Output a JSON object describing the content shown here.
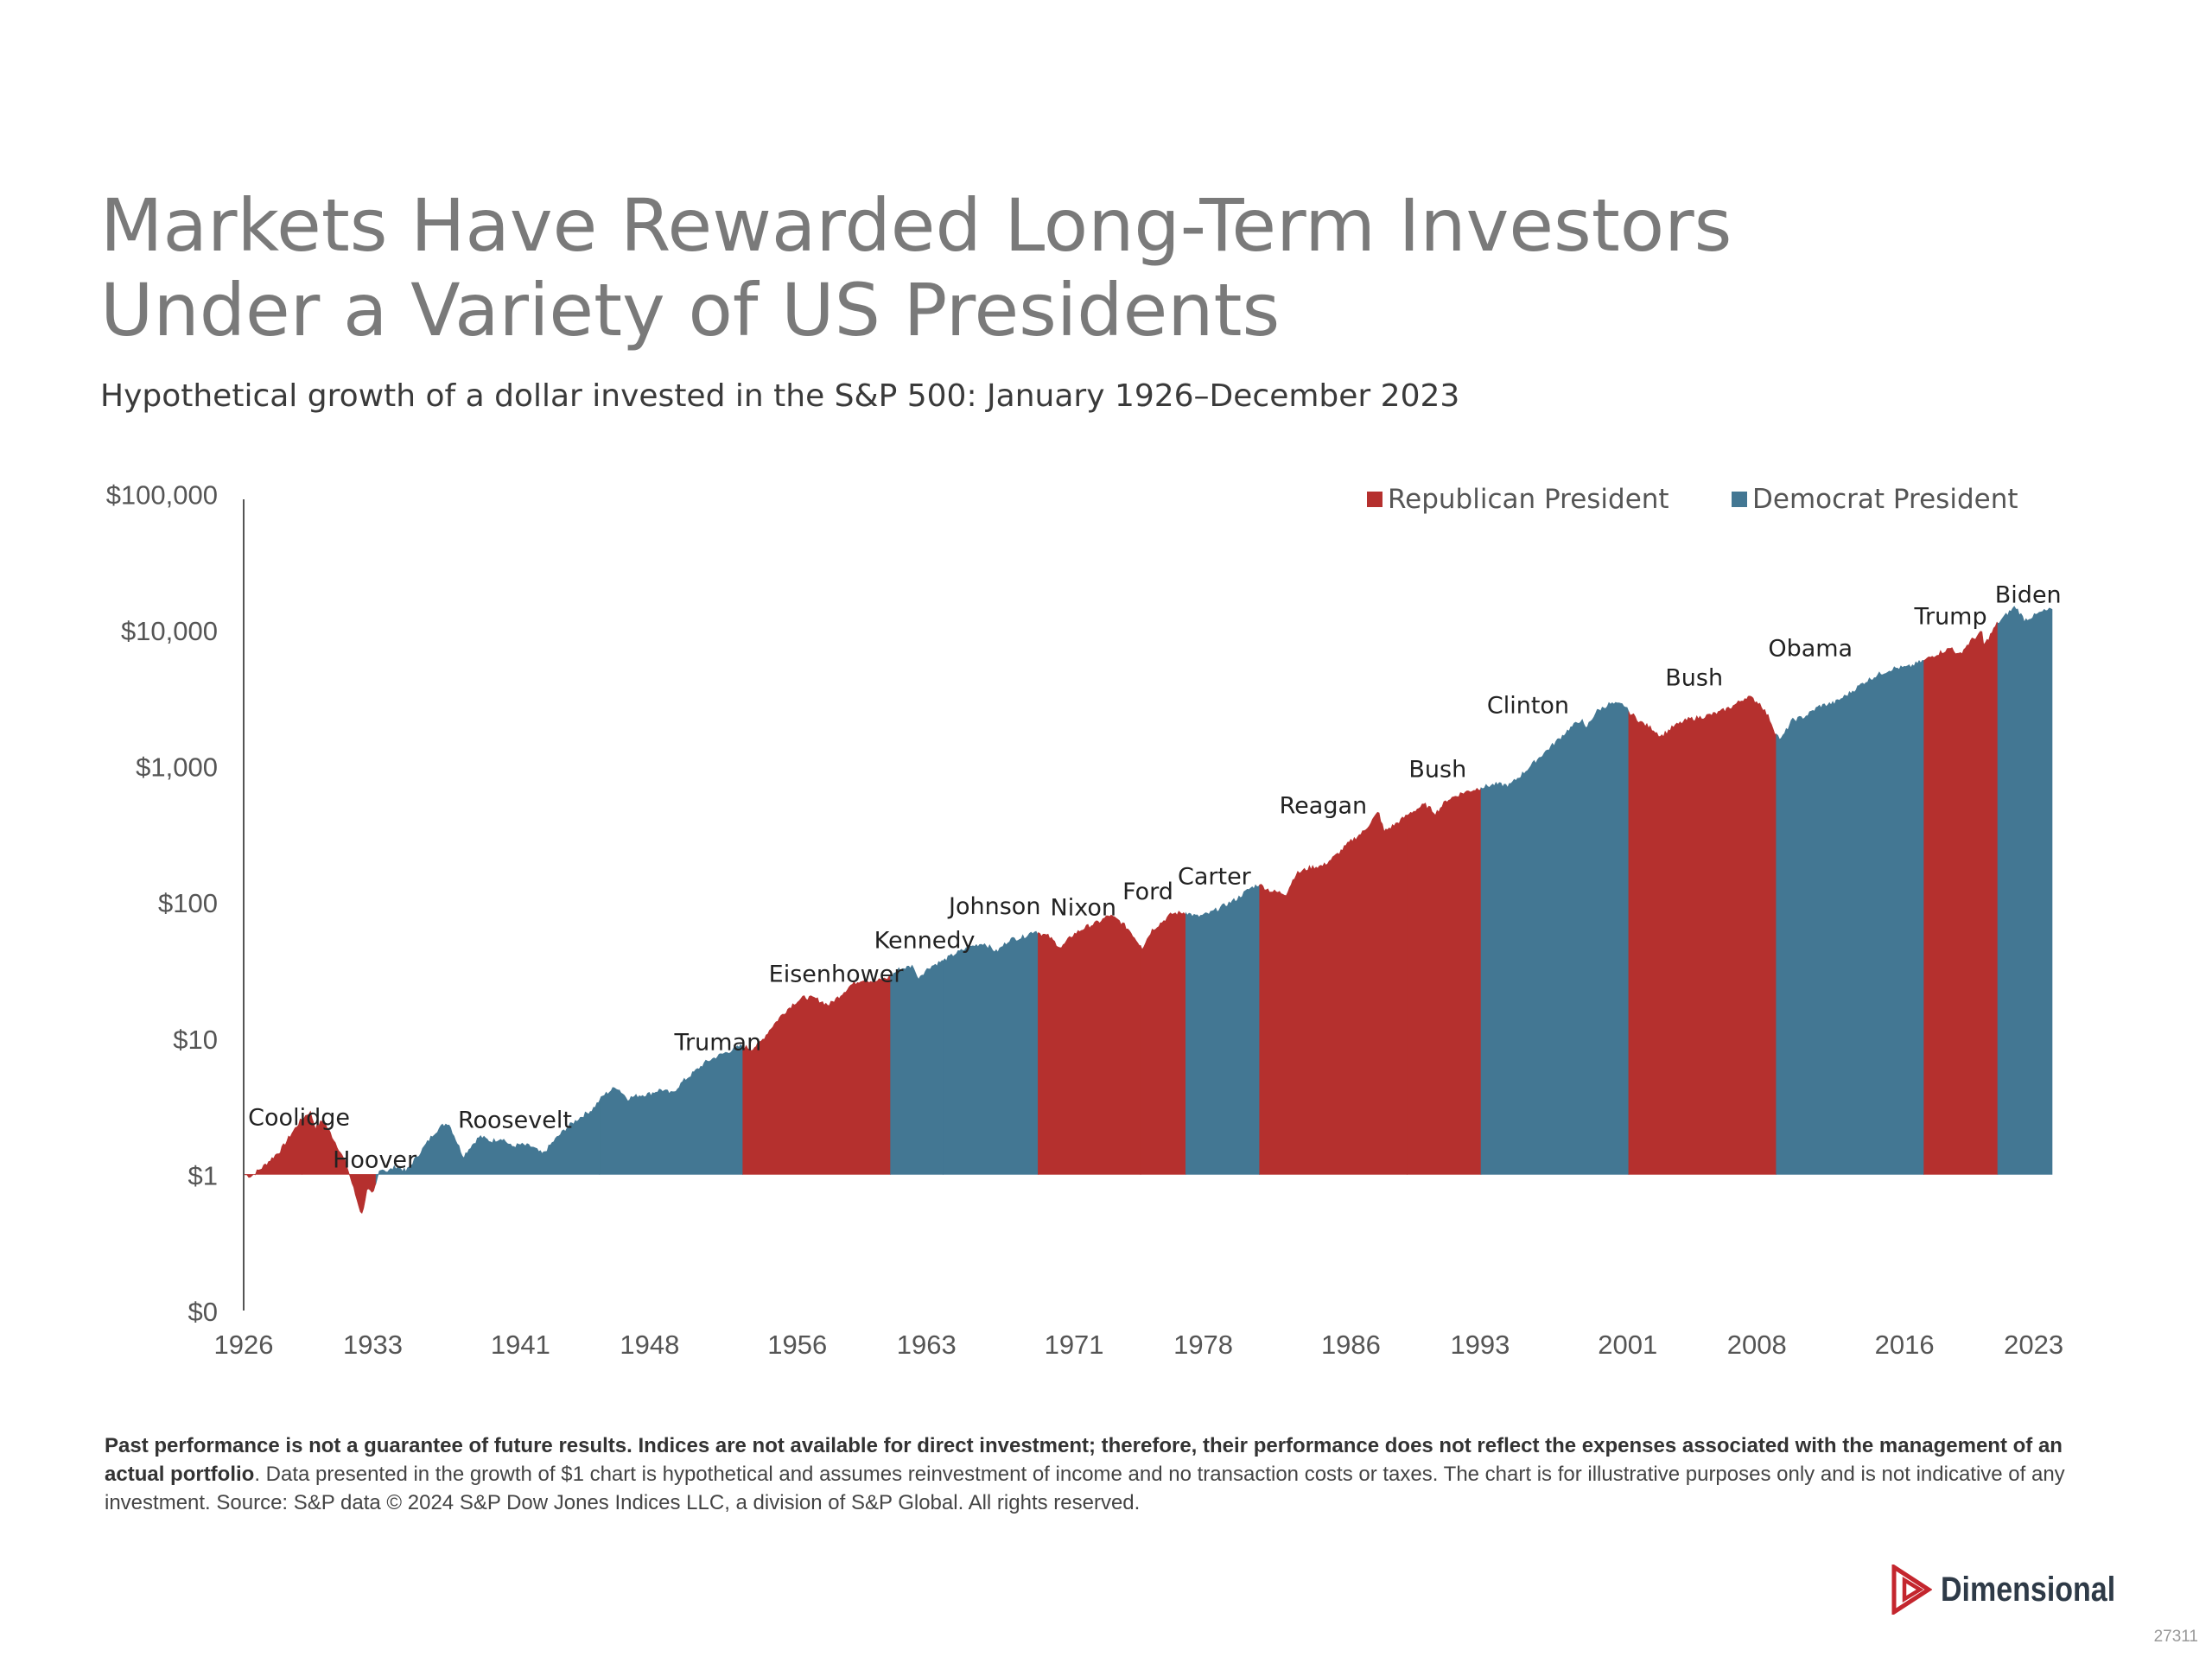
{
  "title_line1": "Markets Have Rewarded Long-Term Investors",
  "title_line2": "Under a Variety of US Presidents",
  "subtitle": "Hypothetical growth of a dollar invested in the S&P 500: January 1926–December 2023",
  "colors": {
    "republican": "#b5302e",
    "democrat": "#437793",
    "axis": "#555555",
    "text": "#333333"
  },
  "chart_data": {
    "type": "area",
    "y_scale": "log",
    "ylim": [
      0.1,
      100000
    ],
    "xlim": [
      1926,
      2024
    ],
    "y_ticks": [
      {
        "value": 100000,
        "label": "$100,000"
      },
      {
        "value": 10000,
        "label": "$10,000"
      },
      {
        "value": 1000,
        "label": "$1,000"
      },
      {
        "value": 100,
        "label": "$100"
      },
      {
        "value": 10,
        "label": "$10"
      },
      {
        "value": 1,
        "label": "$1"
      },
      {
        "value": 0.1,
        "label": "$0"
      }
    ],
    "x_ticks": [
      "1926",
      "1933",
      "1941",
      "1948",
      "1956",
      "1963",
      "1971",
      "1978",
      "1986",
      "1993",
      "2001",
      "2008",
      "2016",
      "2023"
    ],
    "legend": [
      {
        "party": "republican",
        "label": "Republican President"
      },
      {
        "party": "democrat",
        "label": "Democrat President"
      }
    ],
    "legend_position": "top-right",
    "series": [
      {
        "x": 1926.0,
        "y": 1.0
      },
      {
        "x": 1926.4,
        "y": 0.97
      },
      {
        "x": 1927.0,
        "y": 1.12
      },
      {
        "x": 1927.5,
        "y": 1.3
      },
      {
        "x": 1928.0,
        "y": 1.5
      },
      {
        "x": 1928.6,
        "y": 2.0
      },
      {
        "x": 1929.1,
        "y": 2.5
      },
      {
        "x": 1929.6,
        "y": 2.9
      },
      {
        "x": 1929.9,
        "y": 2.2
      },
      {
        "x": 1930.3,
        "y": 2.5
      },
      {
        "x": 1930.8,
        "y": 1.9
      },
      {
        "x": 1931.2,
        "y": 1.5
      },
      {
        "x": 1931.6,
        "y": 1.15
      },
      {
        "x": 1932.0,
        "y": 0.75
      },
      {
        "x": 1932.4,
        "y": 0.5
      },
      {
        "x": 1932.7,
        "y": 0.78
      },
      {
        "x": 1933.0,
        "y": 0.7
      },
      {
        "x": 1933.4,
        "y": 1.12
      },
      {
        "x": 1933.8,
        "y": 1.05
      },
      {
        "x": 1934.3,
        "y": 1.15
      },
      {
        "x": 1934.8,
        "y": 1.05
      },
      {
        "x": 1935.3,
        "y": 1.3
      },
      {
        "x": 1935.8,
        "y": 1.6
      },
      {
        "x": 1936.3,
        "y": 2.0
      },
      {
        "x": 1936.8,
        "y": 2.3
      },
      {
        "x": 1937.1,
        "y": 2.4
      },
      {
        "x": 1937.5,
        "y": 1.8
      },
      {
        "x": 1937.9,
        "y": 1.35
      },
      {
        "x": 1938.3,
        "y": 1.6
      },
      {
        "x": 1938.8,
        "y": 1.9
      },
      {
        "x": 1939.4,
        "y": 1.75
      },
      {
        "x": 1940.0,
        "y": 1.85
      },
      {
        "x": 1940.5,
        "y": 1.6
      },
      {
        "x": 1941.0,
        "y": 1.65
      },
      {
        "x": 1941.6,
        "y": 1.6
      },
      {
        "x": 1942.2,
        "y": 1.4
      },
      {
        "x": 1942.8,
        "y": 1.75
      },
      {
        "x": 1943.5,
        "y": 2.2
      },
      {
        "x": 1944.2,
        "y": 2.6
      },
      {
        "x": 1944.9,
        "y": 3.0
      },
      {
        "x": 1945.5,
        "y": 3.8
      },
      {
        "x": 1946.2,
        "y": 4.4
      },
      {
        "x": 1946.8,
        "y": 3.6
      },
      {
        "x": 1947.4,
        "y": 3.8
      },
      {
        "x": 1948.0,
        "y": 3.9
      },
      {
        "x": 1948.6,
        "y": 4.2
      },
      {
        "x": 1949.2,
        "y": 3.9
      },
      {
        "x": 1949.8,
        "y": 4.8
      },
      {
        "x": 1950.4,
        "y": 5.6
      },
      {
        "x": 1951.0,
        "y": 6.6
      },
      {
        "x": 1951.7,
        "y": 7.4
      },
      {
        "x": 1952.3,
        "y": 8.0
      },
      {
        "x": 1953.0,
        "y": 8.8
      },
      {
        "x": 1953.5,
        "y": 8.3
      },
      {
        "x": 1954.0,
        "y": 9.3
      },
      {
        "x": 1954.6,
        "y": 12.0
      },
      {
        "x": 1955.2,
        "y": 15.0
      },
      {
        "x": 1955.8,
        "y": 18.0
      },
      {
        "x": 1956.4,
        "y": 20.0
      },
      {
        "x": 1957.0,
        "y": 19.5
      },
      {
        "x": 1957.7,
        "y": 17.5
      },
      {
        "x": 1958.3,
        "y": 20.5
      },
      {
        "x": 1958.9,
        "y": 24.5
      },
      {
        "x": 1959.5,
        "y": 27.0
      },
      {
        "x": 1960.2,
        "y": 26.0
      },
      {
        "x": 1961.0,
        "y": 28.0
      },
      {
        "x": 1961.5,
        "y": 32.0
      },
      {
        "x": 1962.3,
        "y": 34.0
      },
      {
        "x": 1962.5,
        "y": 27.5
      },
      {
        "x": 1963.2,
        "y": 33.5
      },
      {
        "x": 1963.9,
        "y": 37.0
      },
      {
        "x": 1964.6,
        "y": 42.0
      },
      {
        "x": 1965.4,
        "y": 47.0
      },
      {
        "x": 1966.1,
        "y": 50.0
      },
      {
        "x": 1966.8,
        "y": 43.0
      },
      {
        "x": 1967.5,
        "y": 53.0
      },
      {
        "x": 1968.2,
        "y": 55.0
      },
      {
        "x": 1968.9,
        "y": 62.0
      },
      {
        "x": 1969.0,
        "y": 60.0
      },
      {
        "x": 1969.6,
        "y": 56.0
      },
      {
        "x": 1970.3,
        "y": 46.0
      },
      {
        "x": 1970.9,
        "y": 57.0
      },
      {
        "x": 1971.6,
        "y": 65.0
      },
      {
        "x": 1972.4,
        "y": 72.0
      },
      {
        "x": 1972.9,
        "y": 80.0
      },
      {
        "x": 1973.5,
        "y": 72.0
      },
      {
        "x": 1974.0,
        "y": 62.0
      },
      {
        "x": 1974.7,
        "y": 46.0
      },
      {
        "x": 1975.2,
        "y": 62.0
      },
      {
        "x": 1975.8,
        "y": 72.0
      },
      {
        "x": 1976.3,
        "y": 82.0
      },
      {
        "x": 1977.0,
        "y": 84.0
      },
      {
        "x": 1977.7,
        "y": 78.0
      },
      {
        "x": 1978.3,
        "y": 82.0
      },
      {
        "x": 1979.0,
        "y": 92.0
      },
      {
        "x": 1979.8,
        "y": 105.0
      },
      {
        "x": 1980.5,
        "y": 125.0
      },
      {
        "x": 1981.0,
        "y": 135.0
      },
      {
        "x": 1981.7,
        "y": 120.0
      },
      {
        "x": 1982.5,
        "y": 115.0
      },
      {
        "x": 1983.0,
        "y": 160.0
      },
      {
        "x": 1983.8,
        "y": 180.0
      },
      {
        "x": 1984.5,
        "y": 185.0
      },
      {
        "x": 1985.2,
        "y": 220.0
      },
      {
        "x": 1986.0,
        "y": 280.0
      },
      {
        "x": 1986.7,
        "y": 330.0
      },
      {
        "x": 1987.5,
        "y": 460.0
      },
      {
        "x": 1987.8,
        "y": 330.0
      },
      {
        "x": 1988.5,
        "y": 380.0
      },
      {
        "x": 1989.2,
        "y": 450.0
      },
      {
        "x": 1990.0,
        "y": 520.0
      },
      {
        "x": 1990.6,
        "y": 450.0
      },
      {
        "x": 1991.2,
        "y": 560.0
      },
      {
        "x": 1992.0,
        "y": 630.0
      },
      {
        "x": 1993.0,
        "y": 690.0
      },
      {
        "x": 1993.8,
        "y": 730.0
      },
      {
        "x": 1994.6,
        "y": 720.0
      },
      {
        "x": 1995.4,
        "y": 900.0
      },
      {
        "x": 1996.2,
        "y": 1150.0
      },
      {
        "x": 1997.0,
        "y": 1450.0
      },
      {
        "x": 1997.8,
        "y": 1850.0
      },
      {
        "x": 1998.5,
        "y": 2200.0
      },
      {
        "x": 1998.7,
        "y": 1850.0
      },
      {
        "x": 1999.3,
        "y": 2500.0
      },
      {
        "x": 2000.0,
        "y": 2850.0
      },
      {
        "x": 2000.8,
        "y": 2800.0
      },
      {
        "x": 2001.0,
        "y": 2550.0
      },
      {
        "x": 2001.7,
        "y": 2100.0
      },
      {
        "x": 2002.4,
        "y": 1850.0
      },
      {
        "x": 2002.8,
        "y": 1650.0
      },
      {
        "x": 2003.5,
        "y": 1950.0
      },
      {
        "x": 2004.3,
        "y": 2200.0
      },
      {
        "x": 2005.1,
        "y": 2300.0
      },
      {
        "x": 2005.9,
        "y": 2450.0
      },
      {
        "x": 2006.7,
        "y": 2750.0
      },
      {
        "x": 2007.5,
        "y": 3250.0
      },
      {
        "x": 2008.2,
        "y": 2850.0
      },
      {
        "x": 2008.7,
        "y": 2200.0
      },
      {
        "x": 2009.0,
        "y": 1750.0
      },
      {
        "x": 2009.3,
        "y": 1550.0
      },
      {
        "x": 2009.9,
        "y": 2150.0
      },
      {
        "x": 2010.6,
        "y": 2300.0
      },
      {
        "x": 2011.4,
        "y": 2750.0
      },
      {
        "x": 2012.2,
        "y": 2900.0
      },
      {
        "x": 2013.0,
        "y": 3400.0
      },
      {
        "x": 2013.8,
        "y": 4100.0
      },
      {
        "x": 2014.6,
        "y": 4700.0
      },
      {
        "x": 2015.4,
        "y": 5200.0
      },
      {
        "x": 2016.2,
        "y": 5300.0
      },
      {
        "x": 2017.0,
        "y": 5900.0
      },
      {
        "x": 2017.8,
        "y": 6700.0
      },
      {
        "x": 2018.6,
        "y": 7400.0
      },
      {
        "x": 2018.9,
        "y": 6400.0
      },
      {
        "x": 2019.6,
        "y": 8300.0
      },
      {
        "x": 2020.2,
        "y": 9600.0
      },
      {
        "x": 2020.3,
        "y": 7600.0
      },
      {
        "x": 2021.0,
        "y": 11000.0
      },
      {
        "x": 2021.6,
        "y": 13200.0
      },
      {
        "x": 2022.0,
        "y": 14800.0
      },
      {
        "x": 2022.5,
        "y": 11800.0
      },
      {
        "x": 2023.0,
        "y": 12600.0
      },
      {
        "x": 2023.5,
        "y": 13600.0
      },
      {
        "x": 2024.0,
        "y": 14100.0
      }
    ],
    "terms": [
      {
        "name": "Coolidge",
        "party": "republican",
        "start": 1926.0,
        "end": 1929.17
      },
      {
        "name": "Hoover",
        "party": "republican",
        "start": 1929.17,
        "end": 1933.17
      },
      {
        "name": "Roosevelt",
        "party": "democrat",
        "start": 1933.17,
        "end": 1945.28
      },
      {
        "name": "Truman",
        "party": "democrat",
        "start": 1945.28,
        "end": 1953.05
      },
      {
        "name": "Eisenhower",
        "party": "republican",
        "start": 1953.05,
        "end": 1961.05
      },
      {
        "name": "Kennedy",
        "party": "democrat",
        "start": 1961.05,
        "end": 1963.9
      },
      {
        "name": "Johnson",
        "party": "democrat",
        "start": 1963.9,
        "end": 1969.05
      },
      {
        "name": "Nixon",
        "party": "republican",
        "start": 1969.05,
        "end": 1974.6
      },
      {
        "name": "Ford",
        "party": "republican",
        "start": 1974.6,
        "end": 1977.05
      },
      {
        "name": "Carter",
        "party": "democrat",
        "start": 1977.05,
        "end": 1981.05
      },
      {
        "name": "Reagan",
        "party": "republican",
        "start": 1981.05,
        "end": 1989.05
      },
      {
        "name": "Bush",
        "party": "republican",
        "start": 1989.05,
        "end": 1993.05
      },
      {
        "name": "Clinton",
        "party": "democrat",
        "start": 1993.05,
        "end": 2001.05
      },
      {
        "name": "Bush",
        "party": "republican",
        "start": 2001.05,
        "end": 2009.05
      },
      {
        "name": "Obama",
        "party": "democrat",
        "start": 2009.05,
        "end": 2017.05
      },
      {
        "name": "Trump",
        "party": "republican",
        "start": 2017.05,
        "end": 2021.05
      },
      {
        "name": "Biden",
        "party": "democrat",
        "start": 2021.05,
        "end": 2024.0
      }
    ],
    "president_labels": [
      {
        "text": "Coolidge",
        "x": 1929.0,
        "y": 2.3
      },
      {
        "text": "Hoover",
        "x": 1933.1,
        "y": 1.12
      },
      {
        "text": "Roosevelt",
        "x": 1940.7,
        "y": 2.2
      },
      {
        "text": "Truman",
        "x": 1951.7,
        "y": 8.2
      },
      {
        "text": "Eisenhower",
        "x": 1958.1,
        "y": 26.0
      },
      {
        "text": "Kennedy",
        "x": 1962.9,
        "y": 46.0
      },
      {
        "text": "Johnson",
        "x": 1966.7,
        "y": 82.0
      },
      {
        "text": "Nixon",
        "x": 1971.5,
        "y": 80.0
      },
      {
        "text": "Ford",
        "x": 1975.0,
        "y": 105.0
      },
      {
        "text": "Carter",
        "x": 1978.6,
        "y": 135.0
      },
      {
        "text": "Reagan",
        "x": 1984.5,
        "y": 450.0
      },
      {
        "text": "Bush",
        "x": 1990.7,
        "y": 830.0
      },
      {
        "text": "Clinton",
        "x": 1995.6,
        "y": 2450.0
      },
      {
        "text": "Bush",
        "x": 2004.6,
        "y": 3900.0
      },
      {
        "text": "Obama",
        "x": 2010.9,
        "y": 6400.0
      },
      {
        "text": "Trump",
        "x": 2018.5,
        "y": 11000.0
      },
      {
        "text": "Biden",
        "x": 2022.7,
        "y": 15800.0
      }
    ]
  },
  "footnote": {
    "bold": "Past performance is not a guarantee of future results. Indices are not available for direct investment; therefore, their performance does not reflect the expenses associated with the management of an actual portfolio",
    "normal": ". Data presented in the growth of $1 chart is hypothetical and assumes reinvestment of income and no transaction costs or taxes. The chart is for illustrative purposes only and is not indicative of any investment. Source: S&P data © 2024 S&P Dow Jones Indices LLC, a division of S&P Global. All rights reserved."
  },
  "brand": {
    "name": "Dimensional",
    "logo_icon": "dimensional-logo-icon"
  },
  "doc_code": "27311"
}
